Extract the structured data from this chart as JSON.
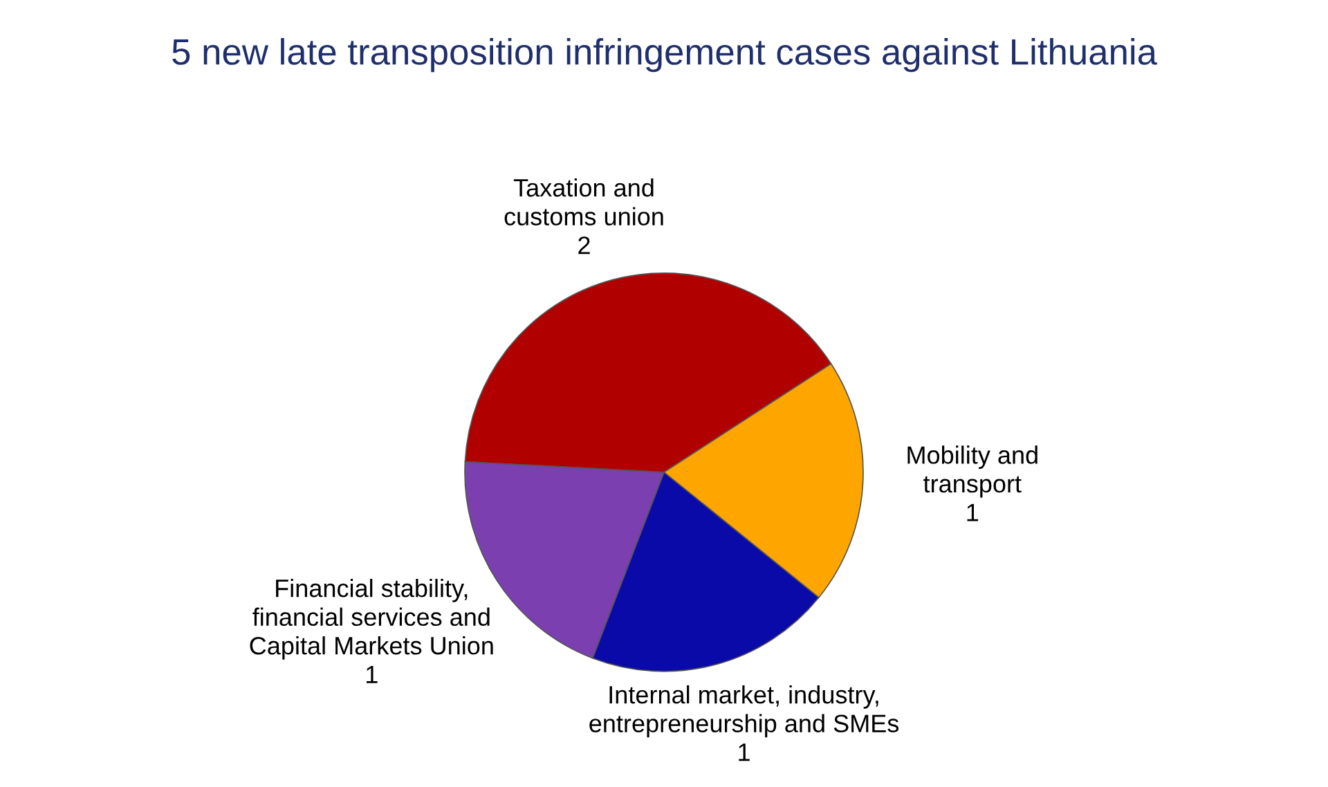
{
  "chart_data": {
    "type": "pie",
    "title": "5 new late transposition infringement cases against Lithuania",
    "categories": [
      "Taxation and customs union",
      "Mobility and transport",
      "Internal market, industry, entrepreneurship and SMEs",
      "Financial stability, financial services and Capital Markets Union"
    ],
    "values": [
      2,
      1,
      1,
      1
    ],
    "colors": [
      "#b00000",
      "#ffa500",
      "#0a0aa8",
      "#7b3fb0"
    ],
    "data_labels": true
  }
}
